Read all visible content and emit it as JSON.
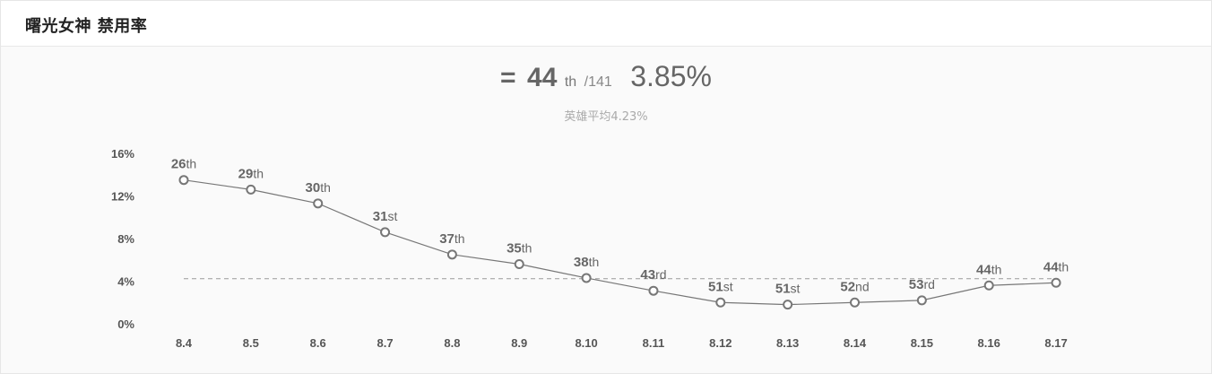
{
  "header": {
    "title": "曙光女神 禁用率"
  },
  "summary": {
    "trend_symbol": "=",
    "rank": "44",
    "rank_suffix": "th",
    "total": "/141",
    "rate": "3.85%",
    "average": "英雄平均4.23%"
  },
  "chart_data": {
    "type": "line",
    "title": "",
    "xlabel": "",
    "ylabel": "",
    "categories": [
      "8.4",
      "8.5",
      "8.6",
      "8.7",
      "8.8",
      "8.9",
      "8.10",
      "8.11",
      "8.12",
      "8.13",
      "8.14",
      "8.15",
      "8.16",
      "8.17"
    ],
    "series": [
      {
        "values": [
          13.5,
          12.6,
          11.3,
          8.6,
          6.5,
          5.6,
          4.3,
          3.1,
          2.0,
          1.8,
          2.0,
          2.2,
          3.6,
          3.85
        ],
        "labels": [
          "26th",
          "29th",
          "30th",
          "31st",
          "37th",
          "35th",
          "38th",
          "43rd",
          "51st",
          "51st",
          "52nd",
          "53rd",
          "44th",
          "44th"
        ],
        "rank_numbers": [
          "26",
          "29",
          "30",
          "31",
          "37",
          "35",
          "38",
          "43",
          "51",
          "51",
          "52",
          "53",
          "44",
          "44"
        ],
        "rank_suffixes": [
          "th",
          "th",
          "th",
          "st",
          "th",
          "th",
          "th",
          "rd",
          "st",
          "st",
          "nd",
          "rd",
          "th",
          "th"
        ],
        "color": "#777777"
      }
    ],
    "reference_line": {
      "value": 4.23
    },
    "yticks": [
      "0%",
      "4%",
      "8%",
      "12%",
      "16%"
    ],
    "ytick_values": [
      0,
      4,
      8,
      12,
      16
    ],
    "ylim": [
      0,
      16
    ],
    "grid": false,
    "legend": "none"
  }
}
